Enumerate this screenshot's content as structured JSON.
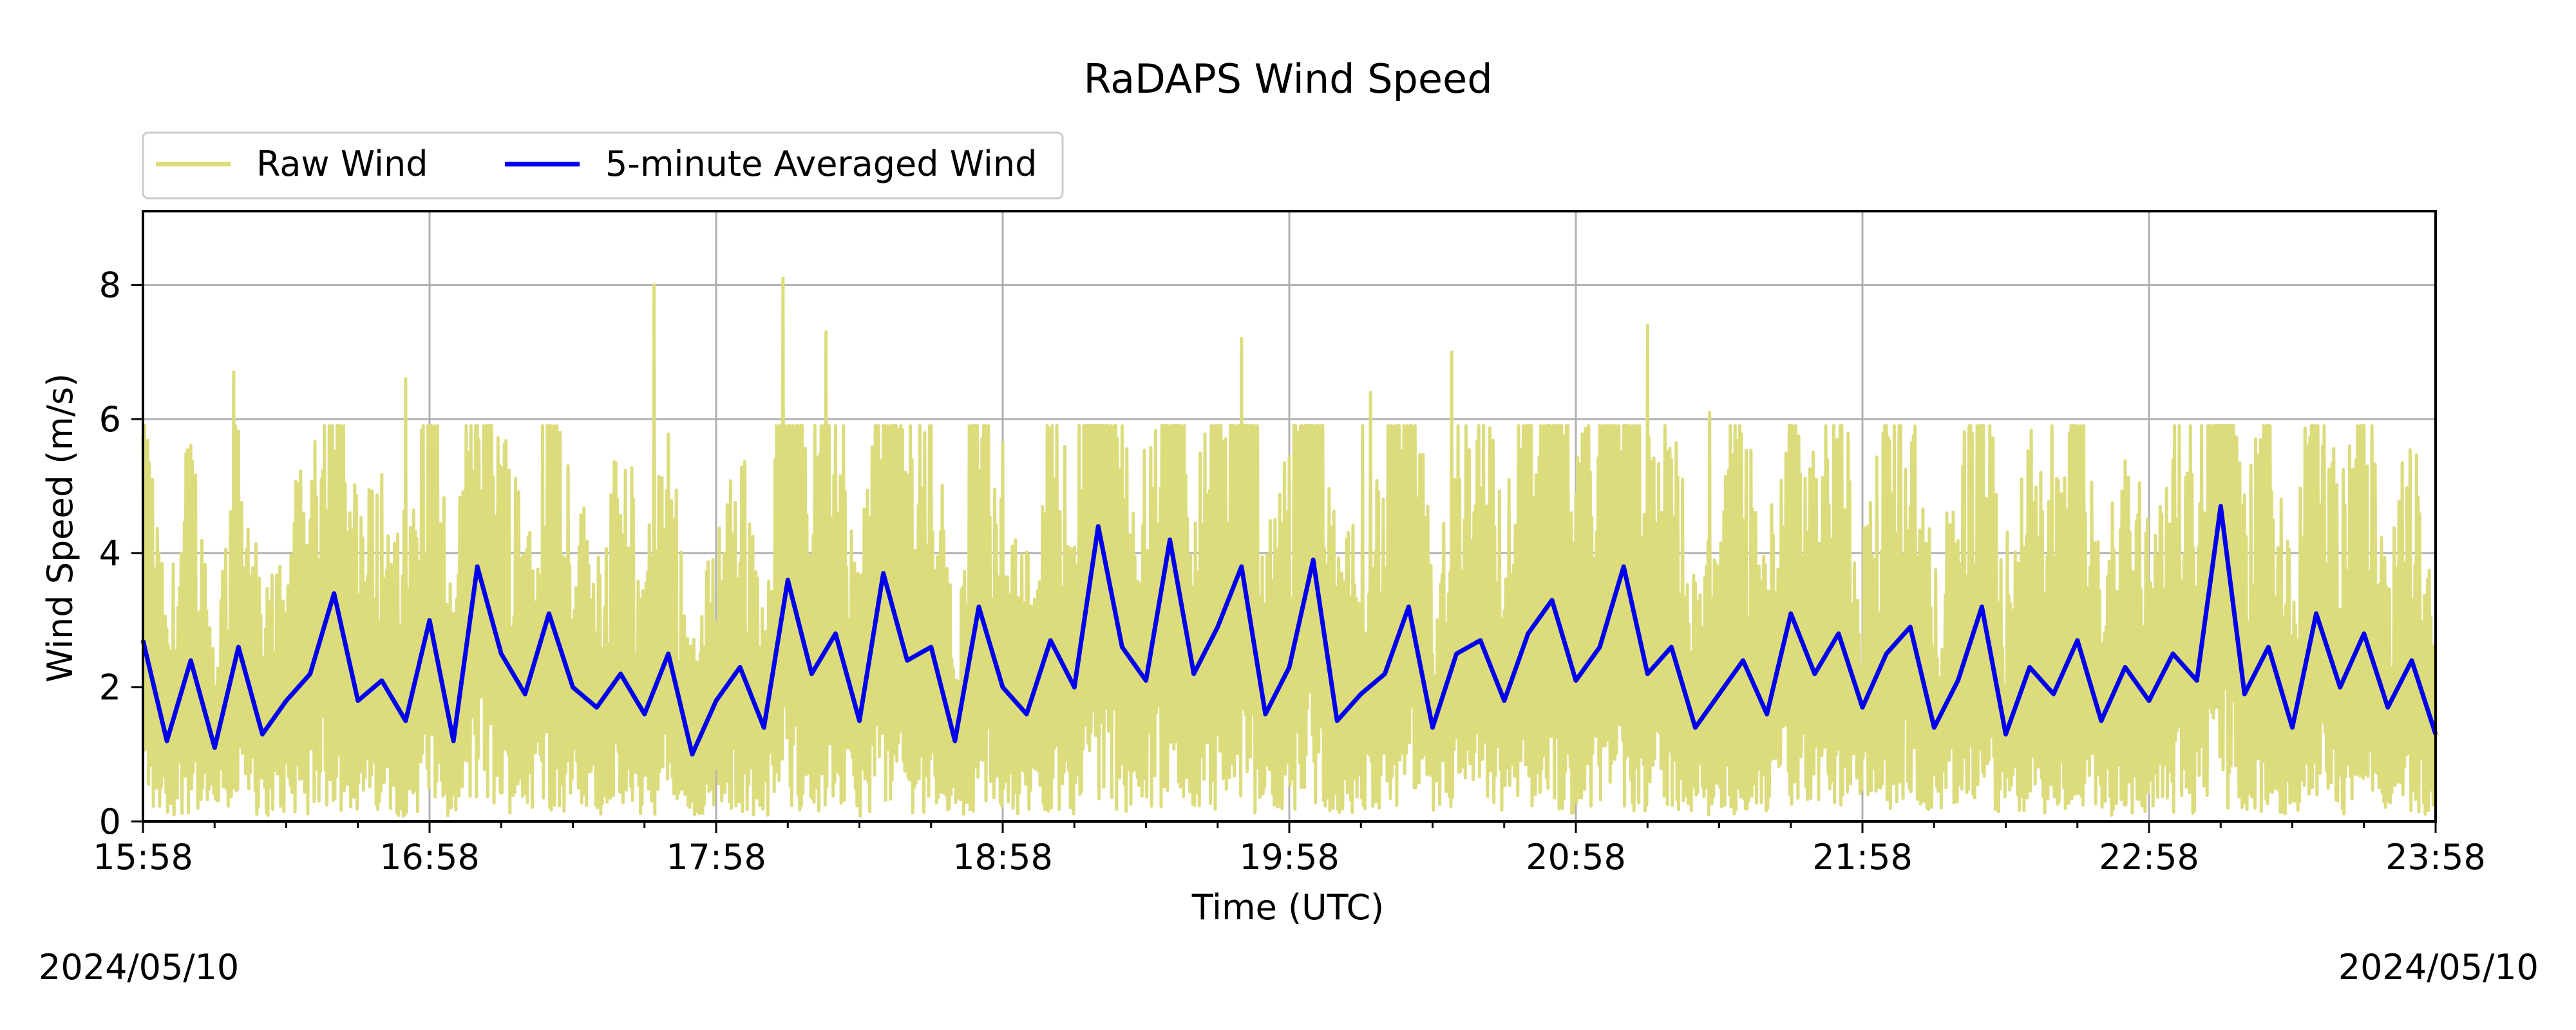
{
  "chart_data": {
    "type": "line",
    "title": "RaDAPS Wind Speed",
    "xlabel": "Time (UTC)",
    "ylabel": "Wind Speed (m/s)",
    "date_left": "2024/05/10",
    "date_right": "2024/05/10",
    "x_start": "15:58",
    "x_end": "23:58",
    "xlim": [
      "15:58",
      "23:58"
    ],
    "xticks": [
      "15:58",
      "16:58",
      "17:58",
      "18:58",
      "19:58",
      "20:58",
      "21:58",
      "22:58",
      "23:58"
    ],
    "ylim": [
      0,
      9.1
    ],
    "yticks": [
      0,
      2,
      4,
      6,
      8
    ],
    "grid": true,
    "legend_position": "top-left, above the plot area",
    "series": [
      {
        "name": "Raw Wind",
        "color": "#dcdc7c",
        "description_values": "dense raw samples ranging roughly 0.1–8.1 m/s; peaks listed below",
        "peaks": [
          {
            "x": "16:17",
            "y": 6.7
          },
          {
            "x": "16:53",
            "y": 6.6
          },
          {
            "x": "17:45",
            "y": 8.0
          },
          {
            "x": "18:12",
            "y": 8.1
          },
          {
            "x": "18:21",
            "y": 7.3
          },
          {
            "x": "19:48",
            "y": 7.2
          },
          {
            "x": "20:15",
            "y": 6.4
          },
          {
            "x": "20:32",
            "y": 7.0
          },
          {
            "x": "21:13",
            "y": 7.4
          },
          {
            "x": "21:26",
            "y": 6.1
          }
        ]
      },
      {
        "name": "5-minute Averaged Wind",
        "color": "#0000ee",
        "x": [
          "15:58",
          "16:03",
          "16:08",
          "16:13",
          "16:18",
          "16:23",
          "16:28",
          "16:33",
          "16:38",
          "16:43",
          "16:48",
          "16:53",
          "16:58",
          "17:03",
          "17:08",
          "17:13",
          "17:18",
          "17:23",
          "17:28",
          "17:33",
          "17:38",
          "17:43",
          "17:48",
          "17:53",
          "17:58",
          "18:03",
          "18:08",
          "18:13",
          "18:18",
          "18:23",
          "18:28",
          "18:33",
          "18:38",
          "18:43",
          "18:48",
          "18:53",
          "18:58",
          "19:03",
          "19:08",
          "19:13",
          "19:18",
          "19:23",
          "19:28",
          "19:33",
          "19:38",
          "19:43",
          "19:48",
          "19:53",
          "19:58",
          "20:03",
          "20:08",
          "20:13",
          "20:18",
          "20:23",
          "20:28",
          "20:33",
          "20:38",
          "20:43",
          "20:48",
          "20:53",
          "20:58",
          "21:03",
          "21:08",
          "21:13",
          "21:18",
          "21:23",
          "21:28",
          "21:33",
          "21:38",
          "21:43",
          "21:48",
          "21:53",
          "21:58",
          "22:03",
          "22:08",
          "22:13",
          "22:18",
          "22:23",
          "22:28",
          "22:33",
          "22:38",
          "22:43",
          "22:48",
          "22:53",
          "22:58",
          "23:03",
          "23:08",
          "23:13",
          "23:18",
          "23:23",
          "23:28",
          "23:33",
          "23:38",
          "23:43",
          "23:48",
          "23:53",
          "23:58"
        ],
        "values": [
          2.7,
          1.2,
          2.4,
          1.1,
          2.6,
          1.3,
          1.8,
          2.2,
          3.4,
          1.8,
          2.1,
          1.5,
          3.0,
          1.2,
          3.8,
          2.5,
          1.9,
          3.1,
          2.0,
          1.7,
          2.2,
          1.6,
          2.5,
          1.0,
          1.8,
          2.3,
          1.4,
          3.6,
          2.2,
          2.8,
          1.5,
          3.7,
          2.4,
          2.6,
          1.2,
          3.2,
          2.0,
          1.6,
          2.7,
          2.0,
          4.4,
          2.6,
          2.1,
          4.2,
          2.2,
          2.9,
          3.8,
          1.6,
          2.3,
          3.9,
          1.5,
          1.9,
          2.2,
          3.2,
          1.4,
          2.5,
          2.7,
          1.8,
          2.8,
          3.3,
          2.1,
          2.6,
          3.8,
          2.2,
          2.6,
          1.4,
          1.9,
          2.4,
          1.6,
          3.1,
          2.2,
          2.8,
          1.7,
          2.5,
          2.9,
          1.4,
          2.1,
          3.2,
          1.3,
          2.3,
          1.9,
          2.7,
          1.5,
          2.3,
          1.8,
          2.5,
          2.1,
          4.7,
          1.9,
          2.6,
          1.4,
          3.1,
          2.0,
          2.8,
          1.7,
          2.4,
          1.3
        ]
      }
    ]
  }
}
